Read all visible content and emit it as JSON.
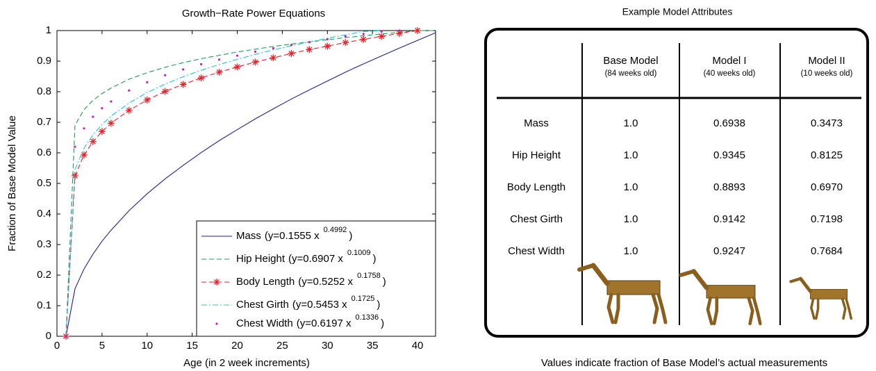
{
  "chart_data": {
    "type": "line",
    "title": "Growth−Rate Power Equations",
    "x_label": "Age (in 2 week increments)",
    "y_label": "Fraction of Base Model Value",
    "x": [
      1,
      2,
      3,
      4,
      5,
      6,
      8,
      10,
      12,
      14,
      16,
      18,
      20,
      22,
      24,
      26,
      28,
      30,
      32,
      34,
      36,
      38,
      40,
      42
    ],
    "xlim": [
      0,
      42
    ],
    "ylim": [
      0,
      1
    ],
    "xticks": [
      0,
      5,
      10,
      15,
      20,
      25,
      30,
      35,
      40
    ],
    "yticks": [
      0,
      0.1,
      0.2,
      0.3,
      0.4,
      0.5,
      0.6,
      0.7,
      0.8,
      0.9,
      1
    ],
    "grid": false,
    "legend_position": "lower right",
    "series": [
      {
        "name": "Mass",
        "equation": {
          "base": "(y=0.1555  x",
          "exponent": "0.4992",
          "close": ")"
        },
        "color": "#1f1f8f",
        "dash": "solid",
        "marker": "none",
        "values": [
          0,
          0.1555,
          0.22,
          0.269,
          0.311,
          0.347,
          0.411,
          0.466,
          0.515,
          0.559,
          0.601,
          0.64,
          0.676,
          0.711,
          0.744,
          0.776,
          0.806,
          0.835,
          0.864,
          0.891,
          0.917,
          0.943,
          0.968,
          0.993
        ]
      },
      {
        "name": "Hip Height",
        "equation": {
          "base": "(y=0.6907  x",
          "exponent": "0.1009",
          "close": ")"
        },
        "color": "#1e9a55",
        "dash": "dashed",
        "marker": "none",
        "values": [
          0,
          0.691,
          0.741,
          0.772,
          0.794,
          0.812,
          0.841,
          0.862,
          0.88,
          0.895,
          0.908,
          0.919,
          0.93,
          0.939,
          0.948,
          0.956,
          0.963,
          0.97,
          0.977,
          0.983,
          0.989,
          0.994,
          1,
          1
        ]
      },
      {
        "name": "Body Length",
        "equation": {
          "base": "(y=0.5252  x",
          "exponent": "0.1758",
          "close": ")"
        },
        "color": "#e8202a",
        "dash": "dashed",
        "marker": "star",
        "values": [
          0,
          0.525,
          0.593,
          0.637,
          0.67,
          0.697,
          0.739,
          0.773,
          0.801,
          0.824,
          0.845,
          0.864,
          0.881,
          0.897,
          0.911,
          0.925,
          0.938,
          0.949,
          0.961,
          0.971,
          0.981,
          0.991,
          1,
          null
        ]
      },
      {
        "name": "Chest Girth",
        "equation": {
          "base": "(y=0.5453  x",
          "exponent": "0.1725",
          "close": ")"
        },
        "color": "#22c0d8",
        "dash": "dashdot",
        "marker": "none",
        "values": [
          0,
          0.545,
          0.615,
          0.659,
          0.693,
          0.72,
          0.763,
          0.797,
          0.825,
          0.849,
          0.87,
          0.889,
          0.906,
          0.922,
          0.937,
          0.95,
          0.963,
          0.975,
          0.986,
          0.997,
          1,
          null,
          null,
          null
        ]
      },
      {
        "name": "Chest Width",
        "equation": {
          "base": "(y=0.6197  x",
          "exponent": "0.1336",
          "close": ")"
        },
        "color": "#c21fb4",
        "dash": "none",
        "marker": "dot",
        "values": [
          0,
          0.62,
          0.68,
          0.718,
          0.746,
          0.768,
          0.804,
          0.831,
          0.854,
          0.873,
          0.89,
          0.905,
          0.918,
          0.931,
          0.942,
          0.953,
          0.962,
          0.972,
          0.981,
          0.989,
          0.997,
          1,
          null,
          null
        ]
      }
    ]
  },
  "table": {
    "title": "Example Model Attributes",
    "columns": [
      null,
      {
        "name": "Base Model",
        "note": "(84 weeks old)"
      },
      {
        "name": "Model I",
        "note": "(40 weeks old)"
      },
      {
        "name": "Model II",
        "note": "(10 weeks old)"
      }
    ],
    "rows": [
      [
        "Mass",
        "1.0",
        "0.6938",
        "0.3473"
      ],
      [
        "Hip Height",
        "1.0",
        "0.9345",
        "0.8125"
      ],
      [
        "Body Length",
        "1.0",
        "0.8893",
        "0.6970"
      ],
      [
        "Chest Girth",
        "1.0",
        "0.9142",
        "0.7198"
      ],
      [
        "Chest Width",
        "1.0",
        "0.9247",
        "0.7684"
      ]
    ],
    "footnote": "Values indicate fraction of Base Model’s actual measurements"
  }
}
